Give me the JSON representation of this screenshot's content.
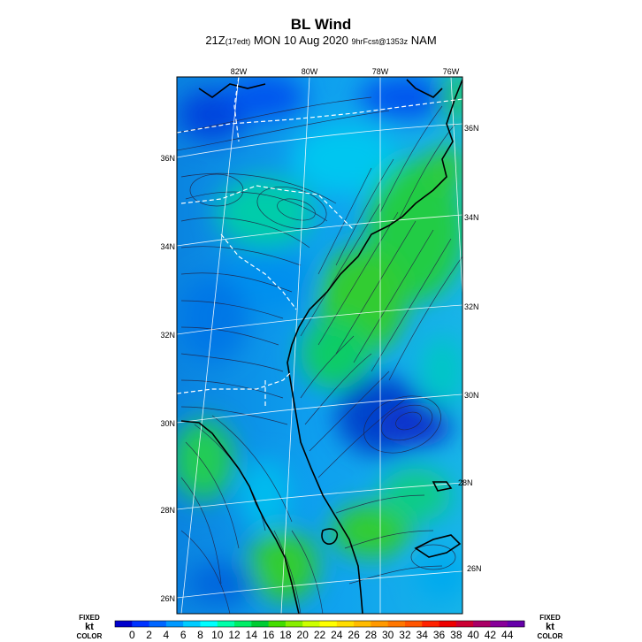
{
  "title": "BL Wind",
  "subtitle": {
    "time": "21Z",
    "local": "(17edt)",
    "date": "MON 10 Aug 2020",
    "fcst": "9hrFcst@1353z",
    "model": "NAM"
  },
  "longitude_labels": [
    "82W",
    "80W",
    "78W",
    "76W"
  ],
  "latitude_labels_left": [
    "36N",
    "34N",
    "32N",
    "30N",
    "28N",
    "26N"
  ],
  "latitude_labels_right": [
    "36N",
    "34N",
    "32N",
    "30N",
    "28N",
    "26N"
  ],
  "colorbar": {
    "ticks": [
      "0",
      "2",
      "4",
      "6",
      "8",
      "10",
      "12",
      "14",
      "16",
      "18",
      "20",
      "22",
      "24",
      "26",
      "28",
      "30",
      "32",
      "34",
      "36",
      "38",
      "40",
      "42",
      "44"
    ],
    "colors": [
      "#0000cc",
      "#0033ff",
      "#0066ff",
      "#0099ff",
      "#00ccff",
      "#00ffff",
      "#00ffaa",
      "#00ee66",
      "#00cc33",
      "#44dd00",
      "#88ee00",
      "#ccff00",
      "#ffff00",
      "#ffdd00",
      "#ffbb00",
      "#ff9900",
      "#ff7700",
      "#ff5500",
      "#ff2200",
      "#ee0000",
      "#cc0033",
      "#aa0066",
      "#880099",
      "#6600aa"
    ],
    "units": "kt",
    "left_label_top": "FIXED",
    "left_label_bottom": "COLOR",
    "right_label_top": "FIXED",
    "right_label_bottom": "COLOR"
  }
}
